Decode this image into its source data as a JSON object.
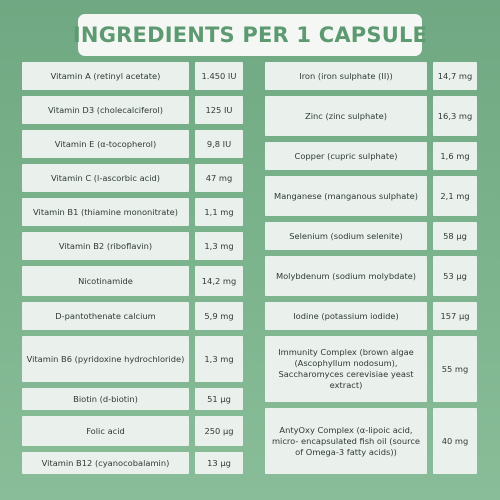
{
  "title": "INGREDIENTS PER 1 CAPSULE",
  "left_column": [
    {
      "name": "Vitamin A (retinyl acetate)",
      "value": "1.450 IU"
    },
    {
      "name": "Vitamin D3 (cholecalciferol)",
      "value": "125 IU"
    },
    {
      "name": "Vitamin E (α-tocopherol)",
      "value": "9,8 IU"
    },
    {
      "name": "Vitamin C (l-ascorbic acid)",
      "value": "47 mg"
    },
    {
      "name": "Vitamin B1 (thiamine mononitrate)",
      "value": "1,1 mg"
    },
    {
      "name": "Vitamin B2 (riboflavin)",
      "value": "1,3 mg"
    },
    {
      "name": "Nicotinamide",
      "value": "14,2 mg"
    },
    {
      "name": "D-pantothenate calcium",
      "value": "5,9 mg"
    },
    {
      "name": "Vitamin B6 (pyridoxine hydrochloride)",
      "value": "1,3 mg"
    },
    {
      "name": "Biotin (d-biotin)",
      "value": "51 µg"
    },
    {
      "name": "Folic acid",
      "value": "250 µg"
    },
    {
      "name": "Vitamin B12 (cyanocobalamin)",
      "value": "13 µg"
    }
  ],
  "right_column": [
    {
      "name": "Iron (iron sulphate (II))",
      "value": "14,7 mg"
    },
    {
      "name": "Zinc (zinc sulphate)",
      "value": "16,3 mg"
    },
    {
      "name": "Copper (cupric sulphate)",
      "value": "1,6 mg"
    },
    {
      "name": "Manganese (manganous sulphate)",
      "value": "2,1 mg"
    },
    {
      "name": "Selenium (sodium selenite)",
      "value": "58 µg"
    },
    {
      "name": "Molybdenum (sodium molybdate)",
      "value": "53 µg"
    },
    {
      "name": "Iodine (potassium iodide)",
      "value": "157 µg"
    },
    {
      "name": "Immunity Complex (brown algae (Ascophyllum nodosum), Saccharomyces cerevisiae yeast extract)",
      "value": "55 mg"
    },
    {
      "name": "AntyOxy Complex (α-lipoic acid, micro- encapsulated fish oil (source of Omega-3 fatty acids))",
      "value": "40 mg"
    }
  ],
  "colors": {
    "background": "#7bb38c",
    "title_text": "#5d9a71",
    "title_box": "#f4f7f4",
    "cell": "#eaf1ec",
    "cell_text": "#2f3a33"
  }
}
